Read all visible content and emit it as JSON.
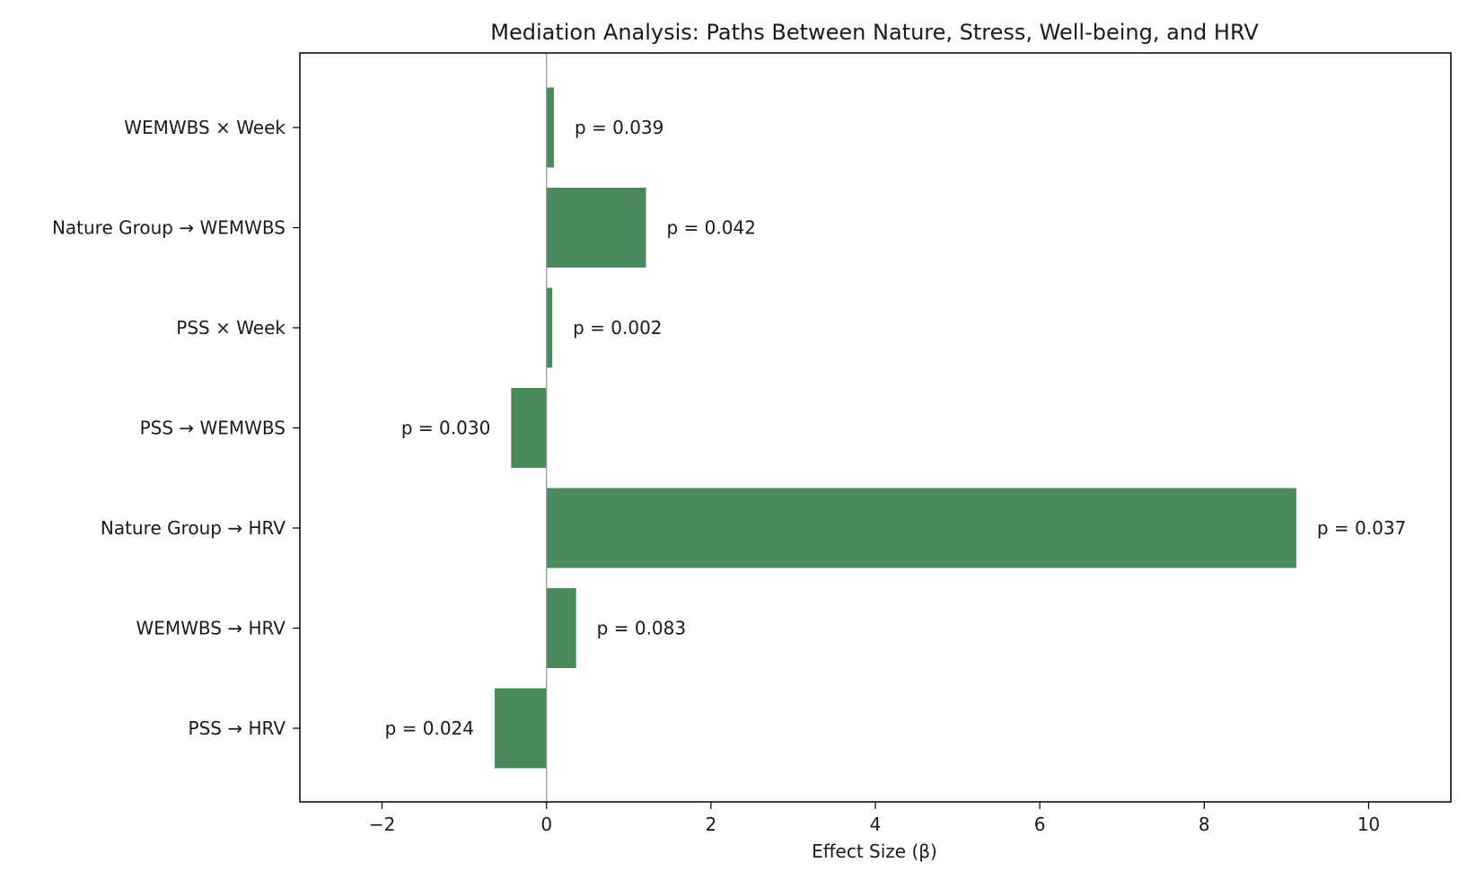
{
  "chart_data": {
    "type": "bar",
    "orientation": "horizontal",
    "title": "Mediation Analysis: Paths Between Nature, Stress, Well-being, and HRV",
    "xlabel": "Effect Size (β)",
    "ylabel": "",
    "xlim": [
      -3.0,
      11.0
    ],
    "xticks": [
      -2,
      0,
      2,
      4,
      6,
      8,
      10
    ],
    "xtick_labels": [
      "−2",
      "0",
      "2",
      "4",
      "6",
      "8",
      "10"
    ],
    "categories": [
      "PSS → HRV",
      "WEMWBS → HRV",
      "Nature Group → HRV",
      "PSS → WEMWBS",
      "PSS × Week",
      "Nature Group → WEMWBS",
      "WEMWBS × Week"
    ],
    "values": [
      -0.63,
      0.36,
      9.12,
      -0.43,
      0.07,
      1.21,
      0.09
    ],
    "p_labels": [
      "p = 0.024",
      "p = 0.083",
      "p = 0.037",
      "p = 0.030",
      "p = 0.002",
      "p = 0.042",
      "p = 0.039"
    ],
    "colors": {
      "bar": "#4a895b",
      "zero_line": "#999999",
      "axis": "#000000"
    },
    "grid": false,
    "legend": false
  }
}
